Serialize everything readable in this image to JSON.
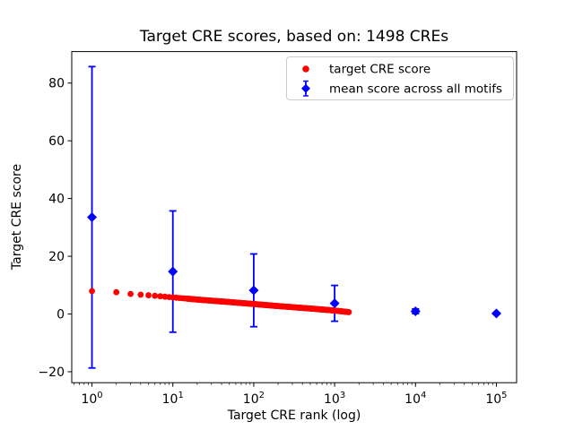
{
  "figure": {
    "title": "Target CRE scores, based on: 1498 CREs",
    "xlabel": "Target CRE rank (log)",
    "ylabel": "Target CRE score",
    "background": "#ffffff"
  },
  "colors": {
    "target_series": "#ff0000",
    "mean_series": "#0000ff",
    "axes": "#000000",
    "legend_border": "#cccccc"
  },
  "legend": {
    "position": "upper right",
    "items": [
      {
        "label": "target CRE score",
        "marker": "circle",
        "color": "#ff0000"
      },
      {
        "label": "mean score across all motifs",
        "marker": "diamond-errorbar",
        "color": "#0000ff"
      }
    ]
  },
  "axes": {
    "x_scale": "log",
    "x_ticks": [
      {
        "base": "10",
        "exp": "0"
      },
      {
        "base": "10",
        "exp": "1"
      },
      {
        "base": "10",
        "exp": "2"
      },
      {
        "base": "10",
        "exp": "3"
      },
      {
        "base": "10",
        "exp": "4"
      },
      {
        "base": "10",
        "exp": "5"
      }
    ],
    "y_ticks": [
      {
        "label": "−20",
        "value": -20
      },
      {
        "label": "0",
        "value": 0
      },
      {
        "label": "20",
        "value": 20
      },
      {
        "label": "40",
        "value": 40
      },
      {
        "label": "60",
        "value": 60
      },
      {
        "label": "80",
        "value": 80
      }
    ]
  },
  "chart_data": {
    "type": "scatter",
    "title": "Target CRE scores, based on: 1498 CREs",
    "xlabel": "Target CRE rank (log)",
    "ylabel": "Target CRE score",
    "x_scale": "log",
    "xlim_log10": [
      -0.25,
      5.25
    ],
    "ylim": [
      -23.8,
      90.9
    ],
    "grid": false,
    "legend_position": "upper right",
    "series": [
      {
        "name": "target CRE score",
        "type": "scatter",
        "marker": "circle",
        "color": "#ff0000",
        "point_count": 1498,
        "points_sampled": [
          [
            1,
            7.95
          ],
          [
            2,
            7.55
          ],
          [
            3,
            6.95
          ],
          [
            4,
            6.7
          ],
          [
            5,
            6.5
          ],
          [
            7,
            6.15
          ],
          [
            10,
            5.75
          ],
          [
            20,
            5.0
          ],
          [
            50,
            4.15
          ],
          [
            100,
            3.45
          ],
          [
            200,
            2.75
          ],
          [
            500,
            1.9
          ],
          [
            1000,
            1.2
          ],
          [
            1498,
            0.65
          ]
        ]
      },
      {
        "name": "mean score across all motifs",
        "type": "scatter-errorbar",
        "marker": "diamond",
        "color": "#0000ff",
        "points": [
          {
            "x": 1,
            "y": 33.5,
            "yerr": 52.2
          },
          {
            "x": 10,
            "y": 14.7,
            "yerr": 21.0
          },
          {
            "x": 100,
            "y": 8.2,
            "yerr": 12.6
          },
          {
            "x": 1000,
            "y": 3.7,
            "yerr": 6.2
          },
          {
            "x": 10000,
            "y": 0.95,
            "yerr": 0.8
          },
          {
            "x": 100000,
            "y": 0.2,
            "yerr": 0.3
          }
        ]
      }
    ]
  }
}
